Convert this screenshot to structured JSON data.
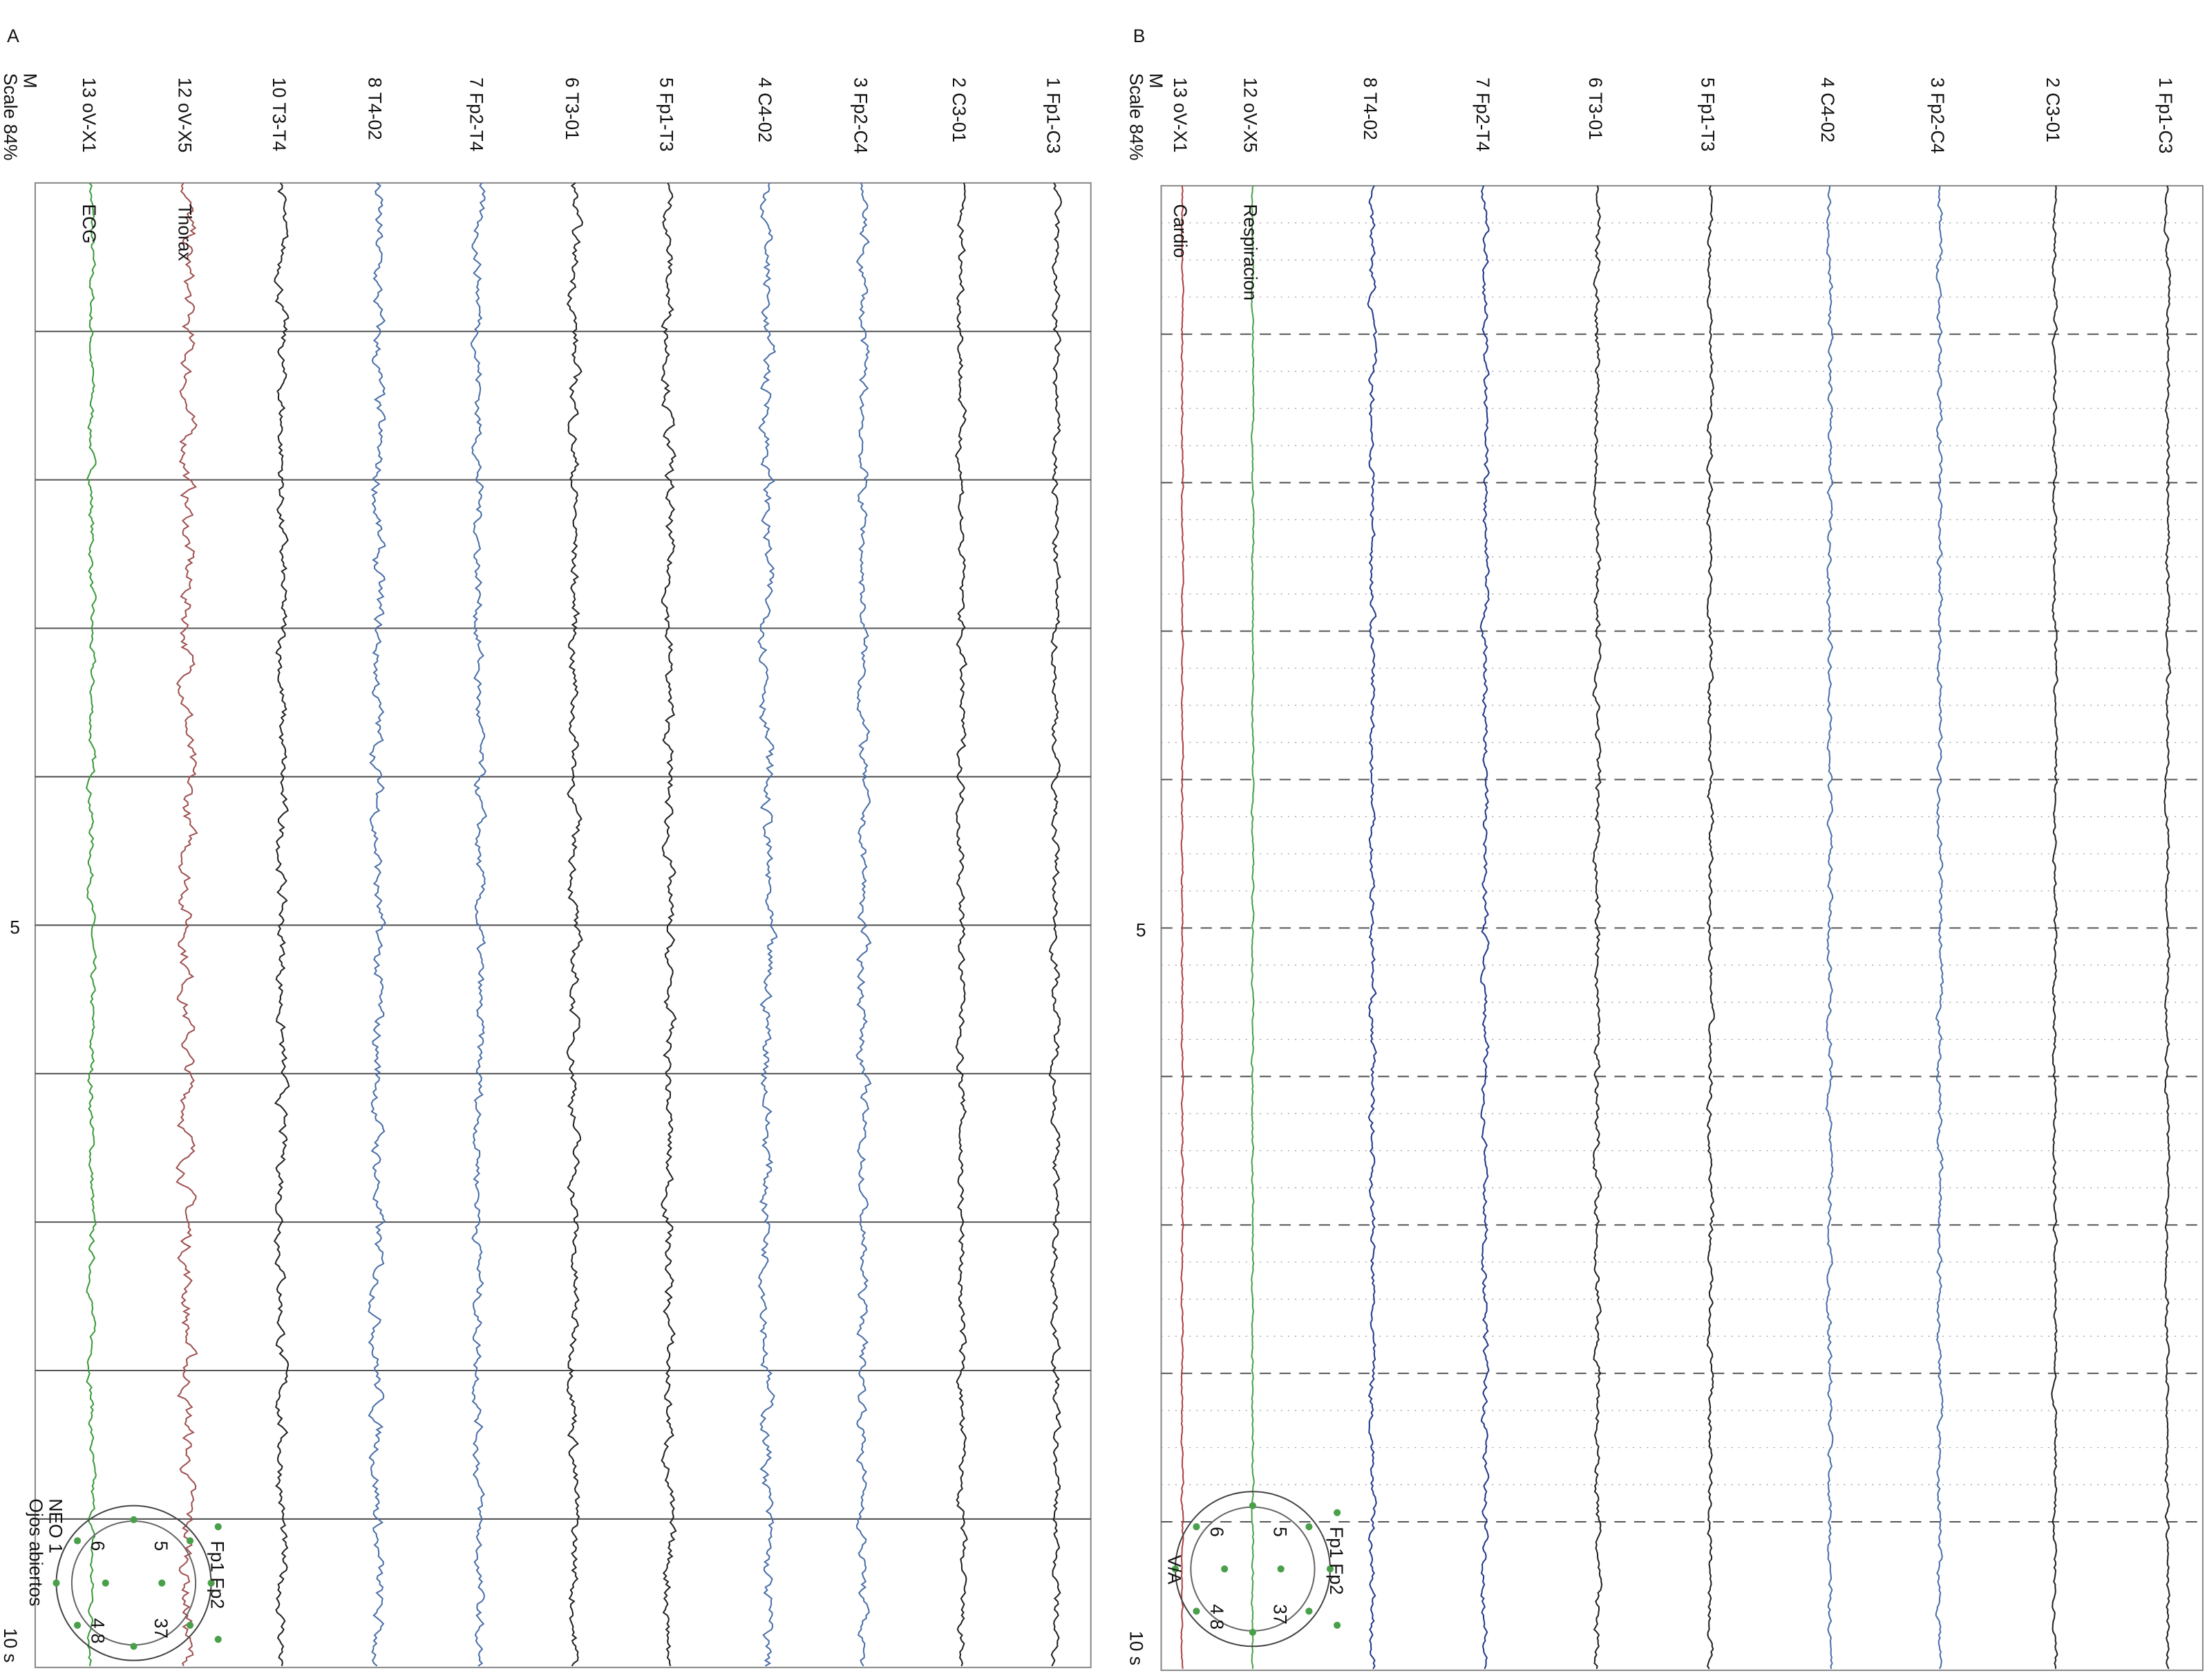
{
  "panels": [
    {
      "label": "A",
      "scale": [
        "M",
        "Scale 84%"
      ],
      "channels": [
        "13 oV-X1",
        "12 oV-X5",
        "10 T3-T4",
        "8 T4-02",
        "7 Fp2-T4",
        "6 T3-01",
        "5 Fp1-T3",
        "4 C4-02",
        "3 Fp2-C4",
        "2 C3-01",
        "1 Fp1-C3"
      ],
      "time_labels": [
        "5",
        "10 s"
      ],
      "annotations": [
        "ECG",
        "Thorax"
      ],
      "montage": {
        "caption": [
          "NEO 1",
          "Ojos abiertos"
        ],
        "labels": [
          "Fp1 Fp2",
          "5",
          "37",
          "6",
          "4 8"
        ]
      }
    },
    {
      "label": "B",
      "scale": [
        "M",
        "Scale 84%"
      ],
      "channels": [
        "13 oV-X1",
        "12 oV-X5",
        "8 T4-02",
        "7 Fp2-T4",
        "6 T3-01",
        "5 Fp1-T3",
        "4 C4-02",
        "3 Fp2-C4",
        "2 C3-01",
        "1 Fp1-C3"
      ],
      "time_labels": [
        "5",
        "10 s"
      ],
      "annotations": [
        "Cardio",
        "Respiracion"
      ],
      "montage": {
        "caption": [
          "V/A"
        ],
        "labels": [
          "Fp1 Fp2",
          "5",
          "37",
          "6",
          "4 8"
        ]
      }
    }
  ]
}
